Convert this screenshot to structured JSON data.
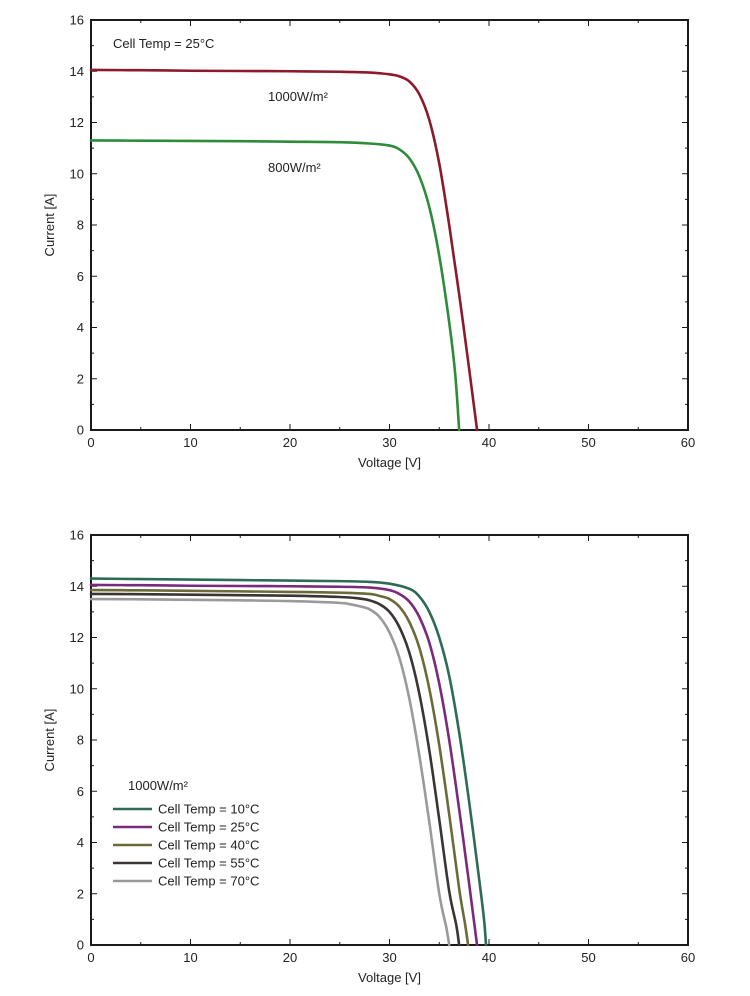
{
  "chart_data": [
    {
      "type": "line",
      "title": "",
      "xlabel": "Voltage [V]",
      "ylabel": "Current [A]",
      "xlim": [
        0,
        60
      ],
      "ylim": [
        0,
        16
      ],
      "xticks": [
        0,
        10,
        20,
        30,
        40,
        50,
        60
      ],
      "yticks": [
        0,
        2,
        4,
        6,
        8,
        10,
        12,
        14,
        16
      ],
      "annotation": "Cell Temp = 25°C",
      "series": [
        {
          "name": "1000W/m²",
          "label": "1000W/m²",
          "color": "#8b1a2b",
          "x": [
            0,
            5,
            10,
            15,
            20,
            25,
            28,
            30,
            31,
            32,
            33,
            34,
            35,
            36,
            37,
            38,
            38.5,
            38.8
          ],
          "y": [
            14.05,
            14.04,
            14.02,
            14.01,
            14.0,
            13.98,
            13.95,
            13.88,
            13.8,
            13.6,
            13.1,
            12.1,
            10.4,
            8.0,
            5.3,
            2.4,
            0.9,
            0
          ]
        },
        {
          "name": "800W/m²",
          "label": "800W/m²",
          "color": "#2e8b3a",
          "x": [
            0,
            5,
            10,
            15,
            20,
            25,
            28,
            30,
            31,
            32,
            33,
            34,
            35,
            36,
            36.6,
            37
          ],
          "y": [
            11.3,
            11.29,
            11.28,
            11.27,
            11.25,
            11.23,
            11.18,
            11.1,
            10.95,
            10.6,
            9.9,
            8.7,
            6.8,
            4.2,
            2.2,
            0
          ]
        }
      ]
    },
    {
      "type": "line",
      "title": "",
      "xlabel": "Voltage [V]",
      "ylabel": "Current [A]",
      "xlim": [
        0,
        60
      ],
      "ylim": [
        0,
        16
      ],
      "xticks": [
        0,
        10,
        20,
        30,
        40,
        50,
        60
      ],
      "yticks": [
        0,
        2,
        4,
        6,
        8,
        10,
        12,
        14,
        16
      ],
      "legend_title": "1000W/m²",
      "legend_position": "bottom-left",
      "series": [
        {
          "name": "Cell Temp = 10°C",
          "color": "#2d6b55",
          "x": [
            0,
            5,
            10,
            15,
            20,
            25,
            28,
            30,
            32,
            33,
            34,
            35,
            36,
            37,
            38,
            39,
            39.5,
            39.7
          ],
          "y": [
            14.3,
            14.28,
            14.26,
            14.24,
            14.22,
            14.2,
            14.17,
            14.1,
            13.9,
            13.6,
            13.0,
            12.0,
            10.5,
            8.3,
            5.6,
            2.6,
            1.0,
            0
          ]
        },
        {
          "name": "Cell Temp = 25°C",
          "color": "#7a2a7a",
          "x": [
            0,
            5,
            10,
            15,
            20,
            25,
            28,
            30,
            31,
            32,
            33,
            34,
            35,
            36,
            37,
            38,
            38.5,
            38.8
          ],
          "y": [
            14.05,
            14.04,
            14.02,
            14.01,
            14.0,
            13.98,
            13.95,
            13.85,
            13.7,
            13.4,
            12.8,
            11.8,
            10.2,
            8.0,
            5.3,
            2.4,
            0.9,
            0
          ]
        },
        {
          "name": "Cell Temp = 40°C",
          "color": "#6b6b3a",
          "x": [
            0,
            5,
            10,
            15,
            20,
            25,
            28,
            29,
            30,
            31,
            32,
            33,
            34,
            35,
            36,
            37,
            37.6,
            37.9
          ],
          "y": [
            13.85,
            13.84,
            13.82,
            13.8,
            13.78,
            13.75,
            13.7,
            13.62,
            13.5,
            13.2,
            12.6,
            11.6,
            10.0,
            7.8,
            5.1,
            2.2,
            0.8,
            0
          ]
        },
        {
          "name": "Cell Temp = 55°C",
          "color": "#3a3532",
          "x": [
            0,
            5,
            10,
            15,
            20,
            25,
            27,
            28,
            29,
            30,
            31,
            32,
            33,
            34,
            35,
            36,
            36.7,
            37.0
          ],
          "y": [
            13.7,
            13.69,
            13.67,
            13.65,
            13.63,
            13.58,
            13.52,
            13.45,
            13.3,
            13.0,
            12.4,
            11.4,
            9.8,
            7.6,
            4.9,
            2.1,
            0.8,
            0
          ]
        },
        {
          "name": "Cell Temp = 70°C",
          "color": "#9a9a9a",
          "x": [
            0,
            5,
            10,
            15,
            20,
            25,
            26,
            27,
            28,
            29,
            30,
            31,
            32,
            33,
            34,
            35,
            35.7,
            36.0
          ],
          "y": [
            13.5,
            13.49,
            13.47,
            13.45,
            13.42,
            13.35,
            13.3,
            13.22,
            13.1,
            12.8,
            12.2,
            11.2,
            9.6,
            7.4,
            4.8,
            2.0,
            0.7,
            0
          ]
        }
      ]
    }
  ]
}
